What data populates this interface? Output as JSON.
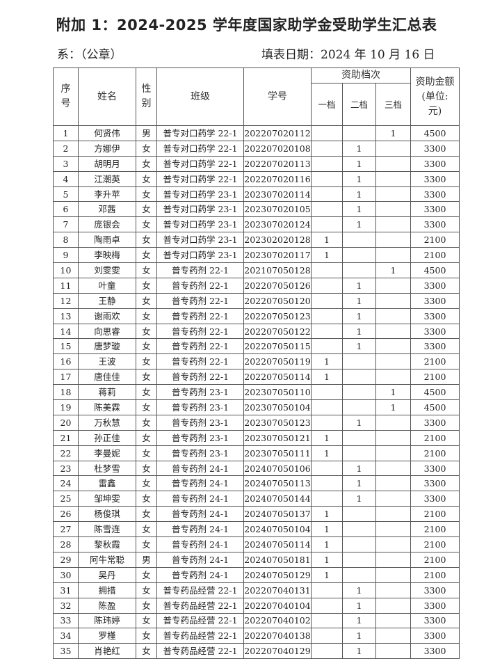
{
  "title": "附加 1：2024-2025 学年度国家助学金受助学生汇总表",
  "department_label": "系：（公章）",
  "fill_date": "填表日期：2024 年 10 月 16 日",
  "headers": {
    "seq": "序号",
    "name": "姓名",
    "gender": "性别",
    "class": "班级",
    "student_id": "学号",
    "level_group": "资助档次",
    "level1": "一档",
    "level2": "二档",
    "level3": "三档",
    "amount": "资助金额(单位:元)"
  },
  "rows": [
    [
      "1",
      "何贤伟",
      "男",
      "普专对口药学 22-1",
      "202207020112",
      "",
      "",
      "1",
      "4500"
    ],
    [
      "2",
      "方娜伊",
      "女",
      "普专对口药学 22-1",
      "202207020108",
      "",
      "1",
      "",
      "3300"
    ],
    [
      "3",
      "胡明月",
      "女",
      "普专对口药学 22-1",
      "202207020113",
      "",
      "1",
      "",
      "3300"
    ],
    [
      "4",
      "江潮英",
      "女",
      "普专对口药学 22-1",
      "202207020116",
      "",
      "1",
      "",
      "3300"
    ],
    [
      "5",
      "李升苹",
      "女",
      "普专对口药学 23-1",
      "202307020114",
      "",
      "1",
      "",
      "3300"
    ],
    [
      "6",
      "邓茜",
      "女",
      "普专对口药学 23-1",
      "202307020105",
      "",
      "1",
      "",
      "3300"
    ],
    [
      "7",
      "庞银会",
      "女",
      "普专对口药学 23-1",
      "202307020124",
      "",
      "1",
      "",
      "3300"
    ],
    [
      "8",
      "陶雨卓",
      "女",
      "普专对口药学 23-1",
      "202302020128",
      "1",
      "",
      "",
      "2100"
    ],
    [
      "9",
      "李映梅",
      "女",
      "普专对口药学 23-1",
      "202307020117",
      "1",
      "",
      "",
      "2100"
    ],
    [
      "10",
      "刘雯雯",
      "女",
      "普专药剂 22-1",
      "202107050128",
      "",
      "",
      "1",
      "4500"
    ],
    [
      "11",
      "叶童",
      "女",
      "普专药剂 22-1",
      "202207050126",
      "",
      "1",
      "",
      "3300"
    ],
    [
      "12",
      "王静",
      "女",
      "普专药剂 22-1",
      "202207050120",
      "",
      "1",
      "",
      "3300"
    ],
    [
      "13",
      "谢雨欢",
      "女",
      "普专药剂 22-1",
      "202207050123",
      "",
      "1",
      "",
      "3300"
    ],
    [
      "14",
      "向思睿",
      "女",
      "普专药剂 22-1",
      "202207050122",
      "",
      "1",
      "",
      "3300"
    ],
    [
      "15",
      "唐梦璇",
      "女",
      "普专药剂 22-1",
      "202207050115",
      "",
      "1",
      "",
      "3300"
    ],
    [
      "16",
      "王波",
      "女",
      "普专药剂 22-1",
      "202207050119",
      "1",
      "",
      "",
      "2100"
    ],
    [
      "17",
      "唐佳佳",
      "女",
      "普专药剂 22-1",
      "202207050114",
      "1",
      "",
      "",
      "2100"
    ],
    [
      "18",
      "蒋莉",
      "女",
      "普专药剂 23-1",
      "202307050110",
      "",
      "",
      "1",
      "4500"
    ],
    [
      "19",
      "陈美霖",
      "女",
      "普专药剂 23-1",
      "202307050104",
      "",
      "",
      "1",
      "4500"
    ],
    [
      "20",
      "万秋慧",
      "女",
      "普专药剂 23-1",
      "202307050123",
      "",
      "1",
      "",
      "3300"
    ],
    [
      "21",
      "孙正佳",
      "女",
      "普专药剂 23-1",
      "202307050121",
      "1",
      "",
      "",
      "2100"
    ],
    [
      "22",
      "李曼妮",
      "女",
      "普专药剂 23-1",
      "202307050111",
      "1",
      "",
      "",
      "2100"
    ],
    [
      "23",
      "杜梦雪",
      "女",
      "普专药剂 24-1",
      "202407050106",
      "",
      "1",
      "",
      "3300"
    ],
    [
      "24",
      "雷鑫",
      "女",
      "普专药剂 24-1",
      "202407050113",
      "",
      "1",
      "",
      "3300"
    ],
    [
      "25",
      "邹坤雯",
      "女",
      "普专药剂 24-1",
      "202407050144",
      "",
      "1",
      "",
      "3300"
    ],
    [
      "26",
      "杨俊琪",
      "女",
      "普专药剂 24-1",
      "202407050137",
      "1",
      "",
      "",
      "2100"
    ],
    [
      "27",
      "陈雪连",
      "女",
      "普专药剂 24-1",
      "202407050104",
      "1",
      "",
      "",
      "2100"
    ],
    [
      "28",
      "黎秋霞",
      "女",
      "普专药剂 24-1",
      "202407050114",
      "1",
      "",
      "",
      "2100"
    ],
    [
      "29",
      "阿牛常聪",
      "男",
      "普专药剂 24-1",
      "202407050181",
      "1",
      "",
      "",
      "2100"
    ],
    [
      "30",
      "吴丹",
      "女",
      "普专药剂 24-1",
      "202407050129",
      "1",
      "",
      "",
      "2100"
    ],
    [
      "31",
      "拥措",
      "女",
      "普专药品经营 22-1",
      "202207040131",
      "",
      "1",
      "",
      "3300"
    ],
    [
      "32",
      "陈盈",
      "女",
      "普专药品经营 22-1",
      "202207040104",
      "",
      "1",
      "",
      "3300"
    ],
    [
      "33",
      "陈玮婷",
      "女",
      "普专药品经营 22-1",
      "202207040102",
      "",
      "1",
      "",
      "3300"
    ],
    [
      "34",
      "罗槿",
      "女",
      "普专药品经营 22-1",
      "202207040138",
      "",
      "1",
      "",
      "3300"
    ],
    [
      "35",
      "肖艳红",
      "女",
      "普专药品经营 22-1",
      "202207040129",
      "",
      "1",
      "",
      "3300"
    ]
  ]
}
